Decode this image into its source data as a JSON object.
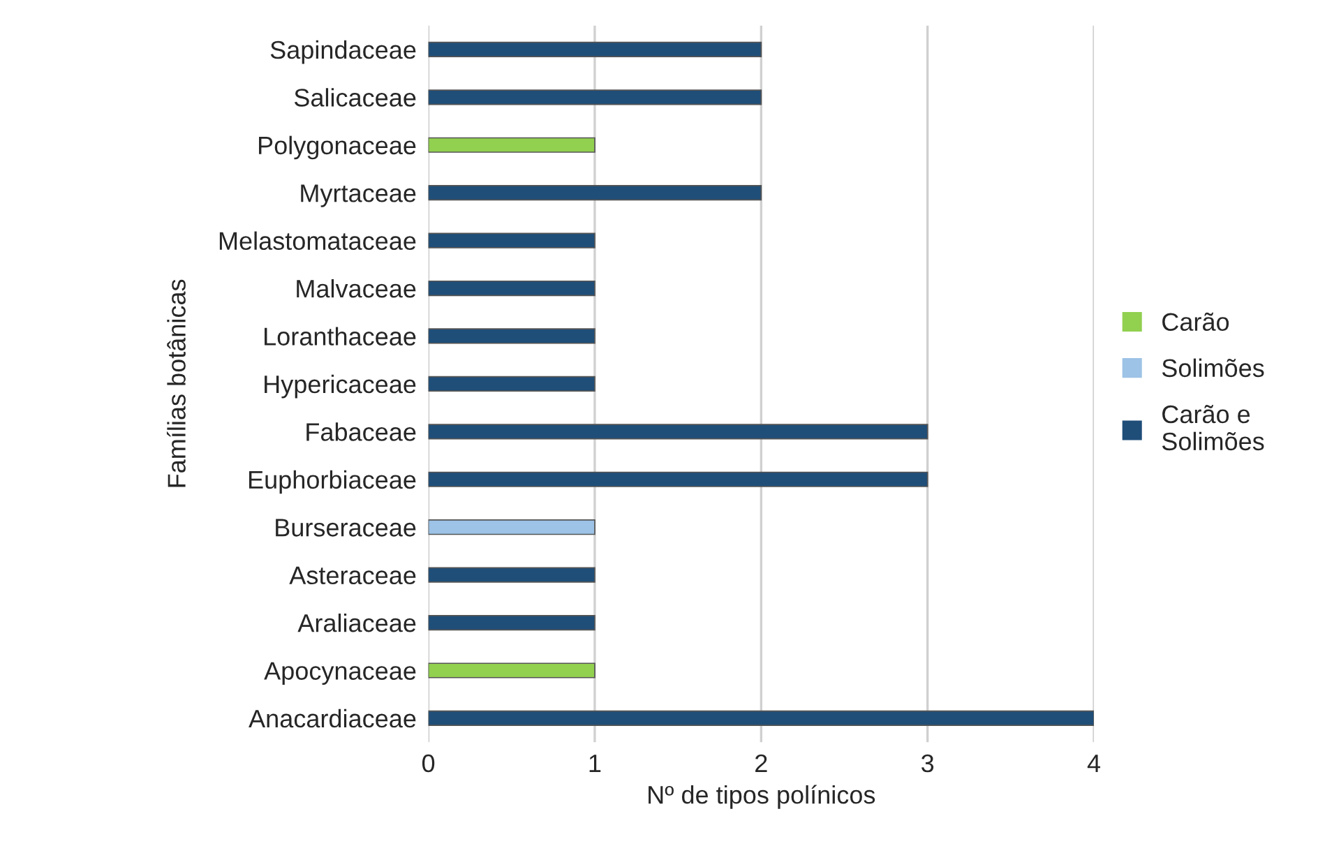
{
  "chart_data": {
    "type": "bar",
    "orientation": "horizontal",
    "xlabel": "Nº de tipos polínicos",
    "ylabel": "Famílias botânicas",
    "categories": [
      "Sapindaceae",
      "Salicaceae",
      "Polygonaceae",
      "Myrtaceae",
      "Melastomataceae",
      "Malvaceae",
      "Loranthaceae",
      "Hypericaceae",
      "Fabaceae",
      "Euphorbiaceae",
      "Burseraceae",
      "Asteraceae",
      "Araliaceae",
      "Apocynaceae",
      "Anacardiaceae"
    ],
    "series": [
      {
        "name": "Carão",
        "color": "#92d050",
        "values": [
          null,
          null,
          1,
          null,
          null,
          null,
          null,
          null,
          null,
          null,
          null,
          null,
          null,
          1,
          null
        ]
      },
      {
        "name": "Solimões",
        "color": "#9dc3e6",
        "values": [
          null,
          null,
          null,
          null,
          null,
          null,
          null,
          null,
          null,
          null,
          1,
          null,
          null,
          null,
          null
        ]
      },
      {
        "name": "Carão e Solimões",
        "color": "#1f4e79",
        "values": [
          2,
          2,
          null,
          2,
          1,
          1,
          1,
          1,
          3,
          3,
          null,
          1,
          1,
          null,
          4
        ]
      }
    ],
    "xlim": [
      0,
      4
    ],
    "xticks": [
      0,
      1,
      2,
      3,
      4
    ],
    "grid": "x",
    "legend": "right"
  }
}
